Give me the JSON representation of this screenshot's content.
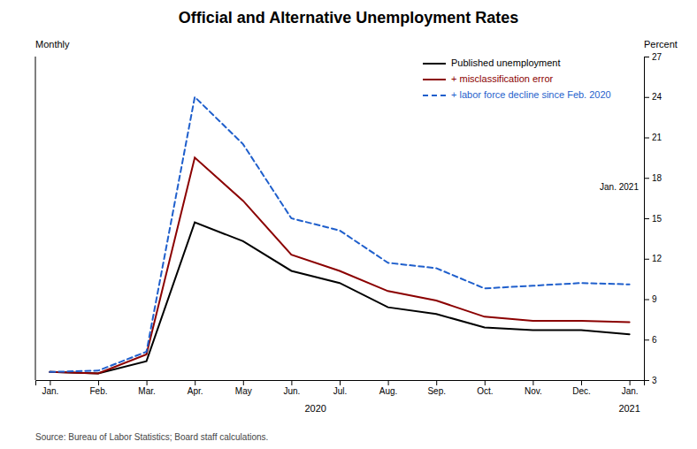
{
  "chart_data": {
    "type": "line",
    "title": "Official and Alternative Unemployment Rates",
    "subtitle": "Monthly",
    "ylabel": "Percent",
    "source": "Source: Bureau of Labor Statistics; Board staff calculations.",
    "annotations": [
      "2020",
      "2021",
      "Jan. 2021"
    ],
    "categories": [
      "Jan.",
      "Feb.",
      "Mar.",
      "Apr.",
      "May",
      "Jun.",
      "Jul.",
      "Aug.",
      "Sep.",
      "Oct.",
      "Nov.",
      "Dec.",
      "Jan."
    ],
    "series": [
      {
        "name": "Published unemployment",
        "color": "#000000",
        "line_style": "solid",
        "values": [
          3.6,
          3.5,
          4.4,
          14.7,
          13.3,
          11.1,
          10.2,
          8.4,
          7.9,
          6.9,
          6.7,
          6.7,
          6.4
        ]
      },
      {
        "name": "+ misclassification error",
        "color": "#8b0000",
        "line_style": "solid",
        "values": [
          3.6,
          3.5,
          4.9,
          19.5,
          16.3,
          12.3,
          11.1,
          9.6,
          8.9,
          7.7,
          7.4,
          7.4,
          7.3
        ]
      },
      {
        "name": "+ labor force decline since Feb. 2020",
        "color": "#1f5fcc",
        "line_style": "dashed",
        "values": [
          3.6,
          3.7,
          5.1,
          24.0,
          20.5,
          15.0,
          14.1,
          11.7,
          11.3,
          9.8,
          10.0,
          10.2,
          10.1
        ]
      }
    ],
    "ylim": [
      3,
      27
    ],
    "yticks": [
      3,
      6,
      9,
      12,
      15,
      18,
      21,
      24,
      27
    ],
    "grid": false,
    "legend": "upper right"
  }
}
